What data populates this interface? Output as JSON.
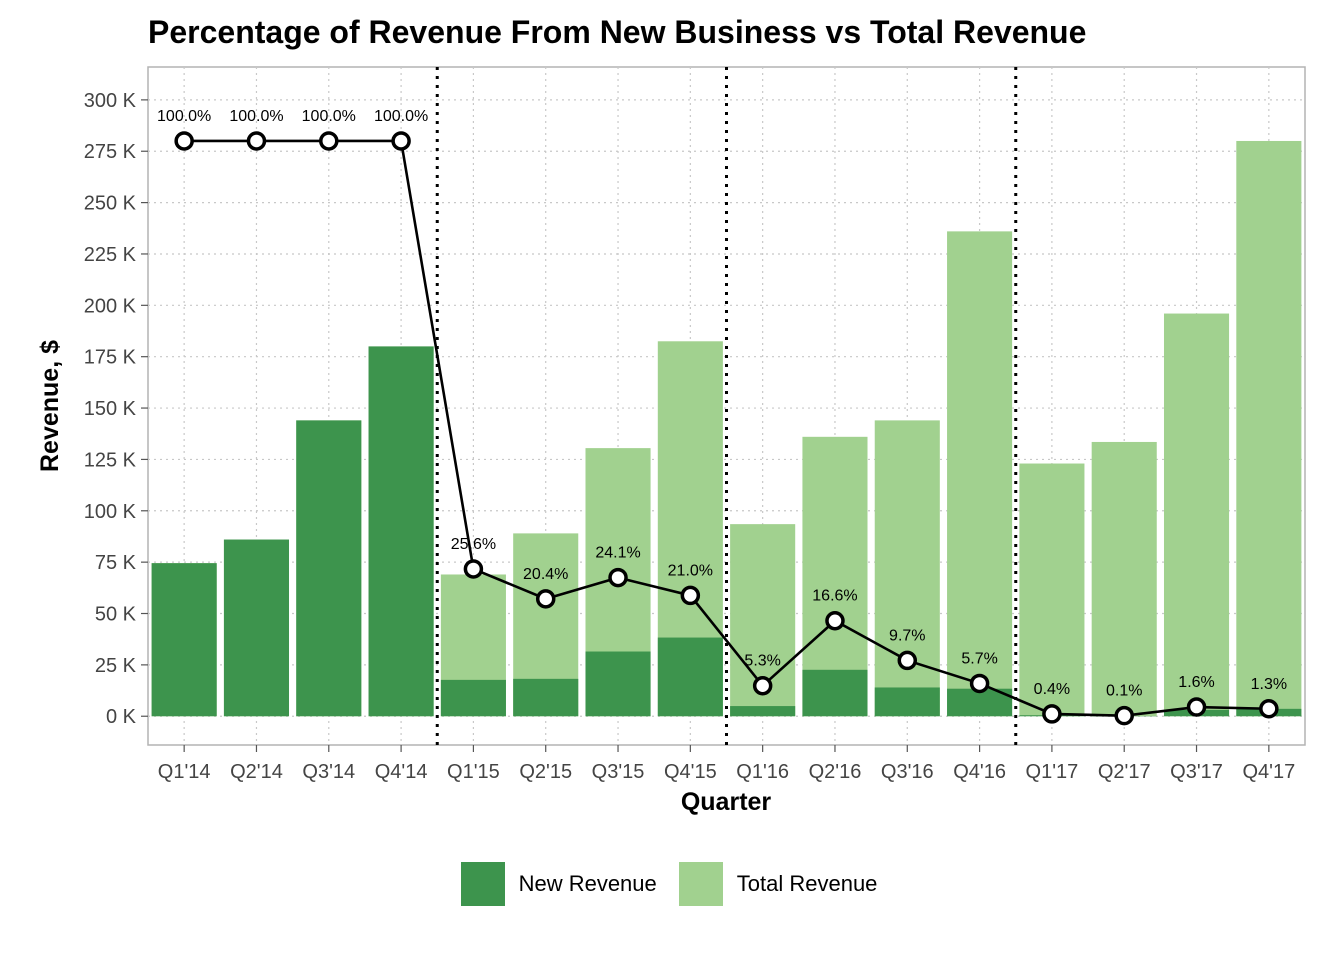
{
  "chart_data": {
    "type": "bar",
    "title": "Percentage of Revenue From New Business vs Total Revenue",
    "xlabel": "Quarter",
    "ylabel": "Revenue, $",
    "categories": [
      "Q1'14",
      "Q2'14",
      "Q3'14",
      "Q4'14",
      "Q1'15",
      "Q2'15",
      "Q3'15",
      "Q4'15",
      "Q1'16",
      "Q2'16",
      "Q3'16",
      "Q4'16",
      "Q1'17",
      "Q2'17",
      "Q3'17",
      "Q4'17"
    ],
    "series": [
      {
        "name": "Total Revenue",
        "color": "#a1d18f",
        "values": [
          74500,
          86000,
          144000,
          180000,
          69000,
          89000,
          130500,
          182500,
          93500,
          136000,
          144000,
          236000,
          123000,
          133500,
          196000,
          280000
        ]
      },
      {
        "name": "New Revenue",
        "color": "#3d944d",
        "values": [
          74500,
          86000,
          144000,
          180000,
          17700,
          18200,
          31500,
          38300,
          4950,
          22600,
          14000,
          13400,
          490,
          130,
          3100,
          3600
        ]
      }
    ],
    "line": {
      "values": [
        100.0,
        100.0,
        100.0,
        100.0,
        25.6,
        20.4,
        24.1,
        21.0,
        5.3,
        16.6,
        9.7,
        5.7,
        0.4,
        0.1,
        1.6,
        1.3
      ],
      "labels": [
        "100.0%",
        "100.0%",
        "100.0%",
        "100.0%",
        "25.6%",
        "20.4%",
        "24.1%",
        "21.0%",
        "5.3%",
        "16.6%",
        "9.7%",
        "5.7%",
        "0.4%",
        "0.1%",
        "1.6%",
        "1.3%"
      ],
      "color": "#000000",
      "scale_note": "100% drawn at 280 K on the revenue axis"
    },
    "ylim": [
      -14000,
      316000
    ],
    "yticks": [
      0,
      25000,
      50000,
      75000,
      100000,
      125000,
      150000,
      175000,
      200000,
      225000,
      250000,
      275000,
      300000
    ],
    "ytick_labels": [
      "0 K",
      "25 K",
      "50 K",
      "75 K",
      "100 K",
      "125 K",
      "150 K",
      "175 K",
      "200 K",
      "225 K",
      "250 K",
      "275 K",
      "300 K"
    ],
    "year_dividers_after": [
      "Q4'14",
      "Q4'15",
      "Q4'16"
    ],
    "grid": true,
    "legend_position": "bottom",
    "legend": [
      {
        "label": "New Revenue",
        "color": "#3d944d"
      },
      {
        "label": "Total Revenue",
        "color": "#a1d18f"
      }
    ]
  }
}
